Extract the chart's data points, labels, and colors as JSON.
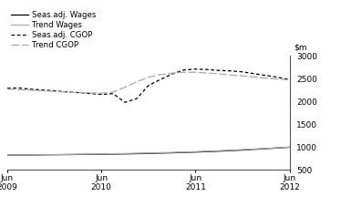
{
  "ylim": [
    500,
    3000
  ],
  "yticks": [
    500,
    1000,
    1500,
    2000,
    2500,
    3000
  ],
  "x_tick_labels": [
    "Jun\n2009",
    "Jun\n2010",
    "Jun\n2011",
    "Jun\n2012"
  ],
  "x_tick_positions": [
    0,
    4,
    8,
    12
  ],
  "seas_wages": [
    820,
    825,
    830,
    835,
    840,
    848,
    858,
    872,
    888,
    908,
    933,
    963,
    995
  ],
  "trend_wages": [
    822,
    827,
    833,
    839,
    846,
    856,
    867,
    880,
    897,
    918,
    942,
    968,
    997
  ],
  "seas_cgop": [
    2290,
    2295,
    2270,
    2250,
    2235,
    2210,
    2195,
    2175,
    2155,
    2170,
    1980,
    2060,
    2350,
    2480,
    2600,
    2690,
    2710,
    2700,
    2680,
    2670,
    2650,
    2610,
    2570,
    2530,
    2480
  ],
  "trend_cgop": [
    2270,
    2258,
    2246,
    2234,
    2220,
    2205,
    2192,
    2185,
    2180,
    2205,
    2310,
    2430,
    2530,
    2590,
    2620,
    2640,
    2640,
    2625,
    2605,
    2580,
    2560,
    2535,
    2510,
    2490,
    2475
  ],
  "seas_wages_color": "#000000",
  "trend_wages_color": "#aaaaaa",
  "seas_cgop_color": "#000000",
  "trend_cgop_color": "#aaaaaa",
  "background_color": "#ffffff",
  "legend_labels": [
    "Seas.adj. Wages",
    "Trend Wages",
    "Seas.adj. CGOP",
    "Trend CGOP"
  ]
}
